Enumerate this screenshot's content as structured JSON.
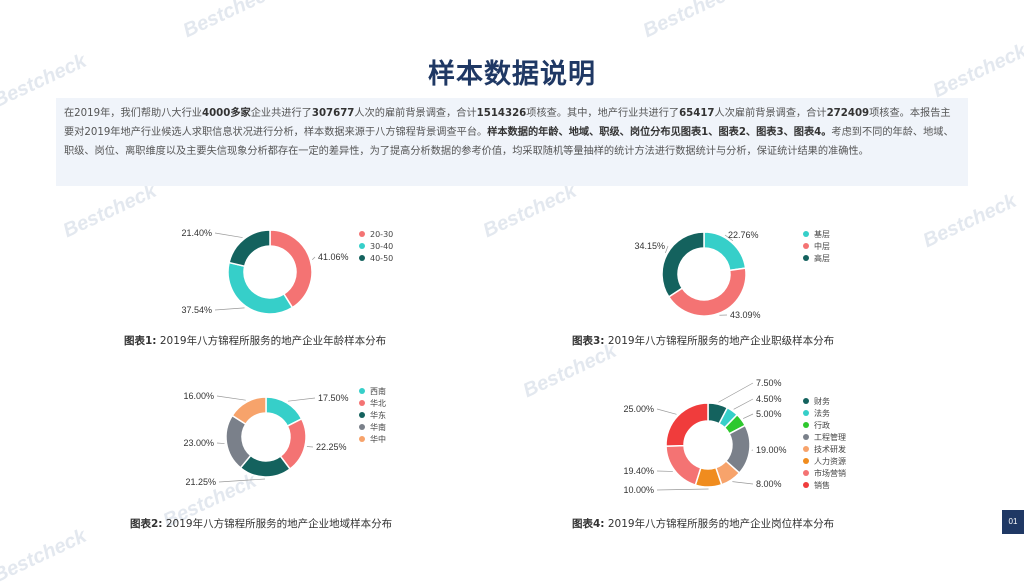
{
  "title": "样本数据说明",
  "watermark": "Bestcheck",
  "intro": {
    "p1_a": "在2019年，我们帮助八大行业",
    "p1_b": "4000多家",
    "p1_c": "企业共进行了",
    "p1_d": "307677",
    "p1_e": "人次的雇前背景调查，合计",
    "p1_f": "1514326",
    "p1_g": "项核查。其中，地产行业共进行了",
    "p1_h": "65417",
    "p1_i": "人次雇前背景调查，合计",
    "p1_j": "272409",
    "p1_k": "项核查。",
    "p2_a": "本报告主要对2019年地产行业候选人求职信息状况进行分析，样本数据来源于八方锦程背景调查平台。",
    "p2_b": "样本数据的年龄、地域、职级、岗位分布见图表1、图表2、图表3、图表4。",
    "p3": "考虑到不同的年龄、地域、职级、岗位、离职维度以及主要失信现象分析都存在一定的差异性，为了提高分析数据的参考价值，均采取随机等量抽样的统计方法进行数据统计与分析，保证统计结果的准确性。"
  },
  "captions": {
    "c1_label": "图表1:",
    "c1_text": "2019年八方锦程所服务的地产企业年龄样本分布",
    "c2_label": "图表2:",
    "c2_text": "2019年八方锦程所服务的地产企业地域样本分布",
    "c3_label": "图表3:",
    "c3_text": "2019年八方锦程所服务的地产企业职级样本分布",
    "c4_label": "图表4:",
    "c4_text": "2019年八方锦程所服务的地产企业岗位样本分布"
  },
  "page_number": "01",
  "chart_data": [
    {
      "type": "pie",
      "id": "age",
      "categories": [
        "20-30",
        "30-40",
        "40-50"
      ],
      "values": [
        41.06,
        37.54,
        21.4
      ],
      "labels": [
        "41.06%",
        "37.54%",
        "21.40%"
      ],
      "colors": [
        "#f47373",
        "#36cfc9",
        "#14625e"
      ],
      "legend": "right"
    },
    {
      "type": "pie",
      "id": "region",
      "categories": [
        "西南",
        "华北",
        "华东",
        "华南",
        "华中"
      ],
      "values": [
        17.5,
        22.25,
        21.25,
        23.0,
        16.0
      ],
      "labels": [
        "17.50%",
        "22.25%",
        "21.25%",
        "23.00%",
        "16.00%"
      ],
      "colors": [
        "#36cfc9",
        "#f47373",
        "#14625e",
        "#7a808a",
        "#f7a36b"
      ],
      "legend": "right"
    },
    {
      "type": "pie",
      "id": "level",
      "categories": [
        "基层",
        "中层",
        "高层"
      ],
      "values": [
        22.76,
        43.09,
        34.15
      ],
      "labels": [
        "22.76%",
        "43.09%",
        "34.15%"
      ],
      "colors": [
        "#36cfc9",
        "#f47373",
        "#14625e"
      ],
      "legend": "right"
    },
    {
      "type": "pie",
      "id": "position",
      "categories": [
        "财务",
        "法务",
        "行政",
        "工程管理",
        "技术研发",
        "人力资源",
        "市场营销",
        "销售"
      ],
      "values": [
        7.5,
        4.5,
        5.0,
        19.0,
        8.0,
        10.0,
        19.4,
        25.0
      ],
      "labels": [
        "7.50%",
        "4.50%",
        "5.00%",
        "19.00%",
        "8.00%",
        "10.00%",
        "19.40%",
        "25.00%"
      ],
      "colors": [
        "#14625e",
        "#36cfc9",
        "#2ec82e",
        "#7a808a",
        "#f7a36b",
        "#f08c1e",
        "#f47373",
        "#f03c3c"
      ],
      "legend": "right"
    }
  ]
}
